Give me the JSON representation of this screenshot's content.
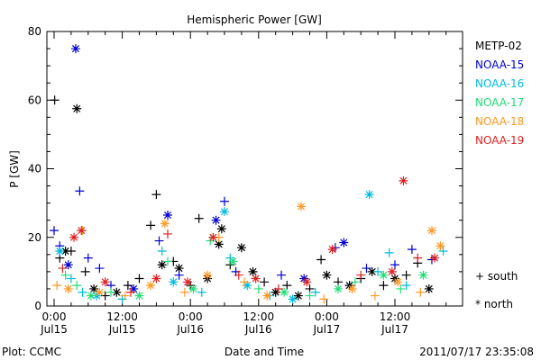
{
  "chart_data": {
    "type": "scatter",
    "title": "Hemispheric Power [GW]",
    "ylabel": "P [GW]",
    "xlabel": "Date and Time",
    "ylim": [
      0,
      80
    ],
    "xlim_hours": [
      0,
      69
    ],
    "y_ticks": [
      0,
      20,
      40,
      60,
      80
    ],
    "x_ticks": [
      {
        "hour": 0,
        "time": "0:00",
        "date": "Jul15"
      },
      {
        "hour": 12,
        "time": "12:00",
        "date": "Jul15"
      },
      {
        "hour": 24,
        "time": "0:00",
        "date": "Jul16"
      },
      {
        "hour": 36,
        "time": "12:00",
        "date": "Jul16"
      },
      {
        "hour": 48,
        "time": "0:00",
        "date": "Jul17"
      },
      {
        "hour": 60,
        "time": "12:00",
        "date": "Jul17"
      }
    ],
    "series": [
      {
        "name": "METP-02",
        "color": "#000000",
        "points": [
          {
            "h": 0.1,
            "v": 60,
            "m": "+"
          },
          {
            "h": 1.0,
            "v": 14,
            "m": "+"
          },
          {
            "h": 2.0,
            "v": 16,
            "m": "*"
          },
          {
            "h": 3.0,
            "v": 16,
            "m": "+"
          },
          {
            "h": 4.0,
            "v": 57.5,
            "m": "*"
          },
          {
            "h": 5.5,
            "v": 10,
            "m": "+"
          },
          {
            "h": 7.0,
            "v": 5,
            "m": "*"
          },
          {
            "h": 9.0,
            "v": 3,
            "m": "+"
          },
          {
            "h": 11.0,
            "v": 4,
            "m": "*"
          },
          {
            "h": 13.0,
            "v": 6,
            "m": "+"
          },
          {
            "h": 15.0,
            "v": 8,
            "m": "+"
          },
          {
            "h": 17.0,
            "v": 23.5,
            "m": "+"
          },
          {
            "h": 18.0,
            "v": 32.5,
            "m": "+"
          },
          {
            "h": 19.0,
            "v": 12,
            "m": "*"
          },
          {
            "h": 21.0,
            "v": 13,
            "m": "+"
          },
          {
            "h": 22.0,
            "v": 11,
            "m": "*"
          },
          {
            "h": 24.0,
            "v": 6,
            "m": "+"
          },
          {
            "h": 25.5,
            "v": 25.5,
            "m": "+"
          },
          {
            "h": 27.0,
            "v": 8,
            "m": "*"
          },
          {
            "h": 29.5,
            "v": 22.5,
            "m": "*"
          },
          {
            "h": 29.0,
            "v": 18,
            "m": "*"
          },
          {
            "h": 31.0,
            "v": 12,
            "m": "+"
          },
          {
            "h": 33.0,
            "v": 17,
            "m": "*"
          },
          {
            "h": 35.0,
            "v": 10,
            "m": "*"
          },
          {
            "h": 37.0,
            "v": 7,
            "m": "+"
          },
          {
            "h": 39.0,
            "v": 4,
            "m": "*"
          },
          {
            "h": 41.0,
            "v": 6,
            "m": "+"
          },
          {
            "h": 43.0,
            "v": 3,
            "m": "*"
          },
          {
            "h": 45.0,
            "v": 5,
            "m": "+"
          },
          {
            "h": 47.0,
            "v": 13.5,
            "m": "+"
          },
          {
            "h": 48.0,
            "v": 9,
            "m": "*"
          },
          {
            "h": 50.0,
            "v": 7,
            "m": "+"
          },
          {
            "h": 52.0,
            "v": 6,
            "m": "*"
          },
          {
            "h": 54.0,
            "v": 8,
            "m": "+"
          },
          {
            "h": 56.0,
            "v": 10,
            "m": "*"
          },
          {
            "h": 58.0,
            "v": 6,
            "m": "+"
          },
          {
            "h": 60.0,
            "v": 8,
            "m": "*"
          },
          {
            "h": 62.0,
            "v": 9,
            "m": "+"
          },
          {
            "h": 64.0,
            "v": 12.5,
            "m": "+"
          },
          {
            "h": 66.0,
            "v": 5,
            "m": "*"
          }
        ]
      },
      {
        "name": "NOAA-15",
        "color": "#0000cc",
        "points": [
          {
            "h": 0.0,
            "v": 22,
            "m": "+"
          },
          {
            "h": 1.0,
            "v": 17.5,
            "m": "+"
          },
          {
            "h": 2.5,
            "v": 12,
            "m": "*"
          },
          {
            "h": 3.8,
            "v": 75,
            "m": "*"
          },
          {
            "h": 4.5,
            "v": 33.5,
            "m": "+"
          },
          {
            "h": 6.0,
            "v": 14,
            "m": "+"
          },
          {
            "h": 8.0,
            "v": 11,
            "m": "+"
          },
          {
            "h": 10.0,
            "v": 6,
            "m": "+"
          },
          {
            "h": 14.0,
            "v": 5,
            "m": "*"
          },
          {
            "h": 18.5,
            "v": 19,
            "m": "+"
          },
          {
            "h": 20.0,
            "v": 26.5,
            "m": "*"
          },
          {
            "h": 22.0,
            "v": 9,
            "m": "+"
          },
          {
            "h": 28.5,
            "v": 25,
            "m": "*"
          },
          {
            "h": 30.0,
            "v": 30.5,
            "m": "+"
          },
          {
            "h": 32.0,
            "v": 10,
            "m": "+"
          },
          {
            "h": 40.0,
            "v": 9,
            "m": "+"
          },
          {
            "h": 44.0,
            "v": 8,
            "m": "*"
          },
          {
            "h": 49.5,
            "v": 17,
            "m": "+"
          },
          {
            "h": 51.0,
            "v": 18.5,
            "m": "*"
          },
          {
            "h": 55.0,
            "v": 11,
            "m": "+"
          },
          {
            "h": 60.0,
            "v": 12,
            "m": "+"
          },
          {
            "h": 63.0,
            "v": 16.5,
            "m": "+"
          },
          {
            "h": 66.5,
            "v": 13.5,
            "m": "+"
          }
        ]
      },
      {
        "name": "NOAA-16",
        "color": "#00bbdd",
        "points": [
          {
            "h": 1.0,
            "v": 16,
            "m": "*"
          },
          {
            "h": 3.0,
            "v": 8,
            "m": "+"
          },
          {
            "h": 5.0,
            "v": 4,
            "m": "+"
          },
          {
            "h": 7.5,
            "v": 3,
            "m": "*"
          },
          {
            "h": 12.0,
            "v": 2,
            "m": "+"
          },
          {
            "h": 19.0,
            "v": 16,
            "m": "+"
          },
          {
            "h": 21.0,
            "v": 7,
            "m": "*"
          },
          {
            "h": 26.0,
            "v": 4,
            "m": "+"
          },
          {
            "h": 30.0,
            "v": 27.5,
            "m": "*"
          },
          {
            "h": 31.0,
            "v": 14,
            "m": "+"
          },
          {
            "h": 34.0,
            "v": 6,
            "m": "*"
          },
          {
            "h": 38.0,
            "v": 3,
            "m": "+"
          },
          {
            "h": 42.0,
            "v": 2,
            "m": "*"
          },
          {
            "h": 46.0,
            "v": 4,
            "m": "+"
          },
          {
            "h": 55.5,
            "v": 32.5,
            "m": "*"
          },
          {
            "h": 57.0,
            "v": 10,
            "m": "+"
          },
          {
            "h": 59.0,
            "v": 15.5,
            "m": "+"
          },
          {
            "h": 62.0,
            "v": 6,
            "m": "+"
          },
          {
            "h": 68.5,
            "v": 16,
            "m": "+"
          }
        ]
      },
      {
        "name": "NOAA-17",
        "color": "#22dd77",
        "points": [
          {
            "h": 2.0,
            "v": 9,
            "m": "+"
          },
          {
            "h": 4.0,
            "v": 6,
            "m": "+"
          },
          {
            "h": 6.5,
            "v": 3,
            "m": "*"
          },
          {
            "h": 10.0,
            "v": 4,
            "m": "+"
          },
          {
            "h": 15.0,
            "v": 3,
            "m": "*"
          },
          {
            "h": 20.0,
            "v": 13,
            "m": "+"
          },
          {
            "h": 24.5,
            "v": 5,
            "m": "*"
          },
          {
            "h": 27.5,
            "v": 19,
            "m": "+"
          },
          {
            "h": 31.5,
            "v": 13,
            "m": "*"
          },
          {
            "h": 36.0,
            "v": 5,
            "m": "+"
          },
          {
            "h": 40.5,
            "v": 4,
            "m": "*"
          },
          {
            "h": 45.0,
            "v": 3,
            "m": "+"
          },
          {
            "h": 50.0,
            "v": 5,
            "m": "*"
          },
          {
            "h": 53.0,
            "v": 7,
            "m": "+"
          },
          {
            "h": 58.0,
            "v": 9,
            "m": "*"
          },
          {
            "h": 61.0,
            "v": 5,
            "m": "+"
          },
          {
            "h": 65.0,
            "v": 9,
            "m": "*"
          }
        ]
      },
      {
        "name": "NOAA-18",
        "color": "#ff9922",
        "points": [
          {
            "h": 0.5,
            "v": 6,
            "m": "+"
          },
          {
            "h": 2.5,
            "v": 5,
            "m": "*"
          },
          {
            "h": 5.0,
            "v": 22,
            "m": "+"
          },
          {
            "h": 8.0,
            "v": 4,
            "m": "*"
          },
          {
            "h": 12.5,
            "v": 3,
            "m": "+"
          },
          {
            "h": 17.0,
            "v": 6,
            "m": "*"
          },
          {
            "h": 19.5,
            "v": 24,
            "m": "*"
          },
          {
            "h": 23.0,
            "v": 4,
            "m": "+"
          },
          {
            "h": 27.0,
            "v": 9,
            "m": "*"
          },
          {
            "h": 29.0,
            "v": 20,
            "m": "+"
          },
          {
            "h": 33.5,
            "v": 7,
            "m": "+"
          },
          {
            "h": 37.5,
            "v": 3,
            "m": "*"
          },
          {
            "h": 43.5,
            "v": 29,
            "m": "*"
          },
          {
            "h": 47.5,
            "v": 2,
            "m": "+"
          },
          {
            "h": 52.5,
            "v": 5,
            "m": "*"
          },
          {
            "h": 56.5,
            "v": 3,
            "m": "+"
          },
          {
            "h": 60.5,
            "v": 7,
            "m": "*"
          },
          {
            "h": 64.5,
            "v": 4,
            "m": "+"
          },
          {
            "h": 66.5,
            "v": 22,
            "m": "*"
          },
          {
            "h": 68.0,
            "v": 17.5,
            "m": "*"
          }
        ]
      },
      {
        "name": "NOAA-19",
        "color": "#dd2222",
        "points": [
          {
            "h": 1.5,
            "v": 11,
            "m": "+"
          },
          {
            "h": 3.5,
            "v": 20,
            "m": "*"
          },
          {
            "h": 4.8,
            "v": 22,
            "m": "*"
          },
          {
            "h": 9.0,
            "v": 7,
            "m": "*"
          },
          {
            "h": 13.5,
            "v": 4,
            "m": "+"
          },
          {
            "h": 18.0,
            "v": 8,
            "m": "*"
          },
          {
            "h": 20.0,
            "v": 21,
            "m": "+"
          },
          {
            "h": 23.5,
            "v": 7,
            "m": "*"
          },
          {
            "h": 28.0,
            "v": 20,
            "m": "*"
          },
          {
            "h": 32.5,
            "v": 9,
            "m": "+"
          },
          {
            "h": 35.5,
            "v": 8,
            "m": "*"
          },
          {
            "h": 39.5,
            "v": 5,
            "m": "+"
          },
          {
            "h": 44.5,
            "v": 7,
            "m": "*"
          },
          {
            "h": 49.0,
            "v": 16.5,
            "m": "*"
          },
          {
            "h": 54.0,
            "v": 9,
            "m": "+"
          },
          {
            "h": 59.5,
            "v": 10,
            "m": "*"
          },
          {
            "h": 61.5,
            "v": 36.5,
            "m": "*"
          },
          {
            "h": 64.0,
            "v": 14,
            "m": "+"
          },
          {
            "h": 67.0,
            "v": 14,
            "m": "*"
          }
        ]
      }
    ]
  },
  "marker_legend": [
    {
      "symbol": "+",
      "label": "south"
    },
    {
      "symbol": "*",
      "label": "north"
    }
  ],
  "footer": {
    "plot_credit": "Plot: CCMC",
    "timestamp": "2011/07/17 23:35:08"
  }
}
